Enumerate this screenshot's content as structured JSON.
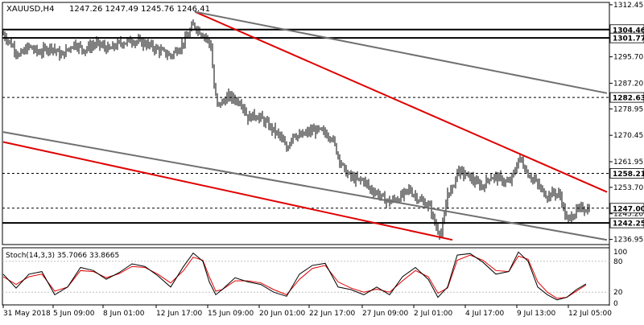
{
  "header": {
    "symbol_timeframe": "XAUUSD,H4",
    "ohlc": "1247.26 1247.49 1245.76 1246.41"
  },
  "stoch": {
    "label": "Stoch(14,3,3) 35.7066 33.8665",
    "level_high": "80",
    "level_low": "20",
    "axis_top": "100",
    "axis_bottom": "0",
    "colors": {
      "main": "#000000",
      "signal": "#e00000",
      "levels": "#c0c0c0"
    }
  },
  "colors": {
    "background": "#ffffff",
    "candle": "#000000",
    "red_channel": "#e00000",
    "grey_channel": "#707070",
    "hline": "#000000"
  },
  "chart_data": {
    "type": "candlestick",
    "symbol": "XAUUSD",
    "timeframe": "H4",
    "price_ticks": [
      "1312.45",
      "1304.46",
      "1301.77",
      "1295.70",
      "1287.20",
      "1282.63",
      "1278.95",
      "1270.45",
      "1261.95",
      "1258.21",
      "1253.70",
      "1247.00",
      "1245.20",
      "1242.25",
      "1236.95"
    ],
    "y_axis_ticks": [
      1312.45,
      1295.7,
      1287.2,
      1278.95,
      1270.45,
      1261.95,
      1253.7,
      1245.2,
      1236.95
    ],
    "ylim": [
      1235.3,
      1313.2
    ],
    "time_labels": [
      "31 May 2018",
      "5 Jun 09:00",
      "8 Jun 01:00",
      "12 Jun 17:00",
      "15 Jun 09:00",
      "20 Jun 01:00",
      "22 Jun 17:00",
      "27 Jun 09:00",
      "2 Jul 01:00",
      "4 Jul 17:00",
      "9 Jul 13:00",
      "12 Jul 05:00"
    ],
    "horizontal_levels": [
      {
        "price": 1304.46,
        "label": "1304.46",
        "style": "solid"
      },
      {
        "price": 1301.77,
        "label": "1301.77",
        "style": "solid"
      },
      {
        "price": 1282.63,
        "label": "1282.63",
        "style": "dashed"
      },
      {
        "price": 1258.21,
        "label": "1258.21",
        "style": "dashed"
      },
      {
        "price": 1247.0,
        "label": "1247.00",
        "style": "dashed"
      },
      {
        "price": 1242.25,
        "label": "1242.25",
        "style": "solid"
      }
    ],
    "trendlines": [
      {
        "color": "red",
        "from": {
          "bar": 119,
          "price": 1310.2
        },
        "to": {
          "bar": 375,
          "price": 1252.2
        }
      },
      {
        "color": "red",
        "from": {
          "bar": 0,
          "price": 1268.3
        },
        "to": {
          "bar": 279,
          "price": 1236.8
        }
      },
      {
        "color": "grey",
        "from": {
          "bar": 119,
          "price": 1310.2
        },
        "to": {
          "bar": 375,
          "price": 1284.0
        }
      },
      {
        "color": "grey",
        "from": {
          "bar": 0,
          "price": 1271.5
        },
        "to": {
          "bar": 375,
          "price": 1236.8
        }
      }
    ],
    "path_anchors": [
      [
        0,
        1303
      ],
      [
        6,
        1299
      ],
      [
        10,
        1296
      ],
      [
        16,
        1299
      ],
      [
        22,
        1297
      ],
      [
        30,
        1299
      ],
      [
        36,
        1296
      ],
      [
        44,
        1300
      ],
      [
        50,
        1298
      ],
      [
        58,
        1300
      ],
      [
        66,
        1298
      ],
      [
        72,
        1300
      ],
      [
        80,
        1301
      ],
      [
        88,
        1300
      ],
      [
        96,
        1298
      ],
      [
        104,
        1296
      ],
      [
        110,
        1299
      ],
      [
        114,
        1302
      ],
      [
        118,
        1306
      ],
      [
        122,
        1304
      ],
      [
        126,
        1302
      ],
      [
        129,
        1299
      ],
      [
        131,
        1286
      ],
      [
        133,
        1280
      ],
      [
        136,
        1281
      ],
      [
        140,
        1283
      ],
      [
        144,
        1282
      ],
      [
        148,
        1281
      ],
      [
        152,
        1276
      ],
      [
        156,
        1277
      ],
      [
        160,
        1276
      ],
      [
        164,
        1274
      ],
      [
        168,
        1272
      ],
      [
        172,
        1270
      ],
      [
        176,
        1266
      ],
      [
        180,
        1271
      ],
      [
        184,
        1270
      ],
      [
        188,
        1271
      ],
      [
        192,
        1272
      ],
      [
        196,
        1272
      ],
      [
        200,
        1271
      ],
      [
        204,
        1270
      ],
      [
        208,
        1264
      ],
      [
        212,
        1259
      ],
      [
        216,
        1257
      ],
      [
        220,
        1256
      ],
      [
        224,
        1256
      ],
      [
        228,
        1253
      ],
      [
        232,
        1252
      ],
      [
        236,
        1250
      ],
      [
        240,
        1249
      ],
      [
        244,
        1250
      ],
      [
        248,
        1251
      ],
      [
        252,
        1253
      ],
      [
        256,
        1251
      ],
      [
        260,
        1249
      ],
      [
        264,
        1248
      ],
      [
        266,
        1246
      ],
      [
        268,
        1242
      ],
      [
        270,
        1240
      ],
      [
        272,
        1239
      ],
      [
        274,
        1244
      ],
      [
        276,
        1252
      ],
      [
        279,
        1253
      ],
      [
        282,
        1259
      ],
      [
        286,
        1258
      ],
      [
        290,
        1257
      ],
      [
        294,
        1255
      ],
      [
        298,
        1254
      ],
      [
        302,
        1257
      ],
      [
        306,
        1257
      ],
      [
        310,
        1256
      ],
      [
        314,
        1255
      ],
      [
        318,
        1259
      ],
      [
        320,
        1263
      ],
      [
        322,
        1262
      ],
      [
        326,
        1258
      ],
      [
        330,
        1256
      ],
      [
        334,
        1253
      ],
      [
        338,
        1251
      ],
      [
        342,
        1252
      ],
      [
        346,
        1251
      ],
      [
        348,
        1247
      ],
      [
        350,
        1243
      ],
      [
        352,
        1244
      ],
      [
        356,
        1246
      ],
      [
        360,
        1247
      ],
      [
        364,
        1246.41
      ]
    ],
    "stochastic": {
      "k": [
        [
          0,
          55
        ],
        [
          8,
          28
        ],
        [
          16,
          55
        ],
        [
          24,
          60
        ],
        [
          32,
          15
        ],
        [
          40,
          30
        ],
        [
          48,
          68
        ],
        [
          56,
          62
        ],
        [
          64,
          45
        ],
        [
          72,
          58
        ],
        [
          80,
          75
        ],
        [
          88,
          70
        ],
        [
          96,
          52
        ],
        [
          104,
          30
        ],
        [
          112,
          70
        ],
        [
          118,
          96
        ],
        [
          124,
          80
        ],
        [
          128,
          40
        ],
        [
          132,
          15
        ],
        [
          136,
          25
        ],
        [
          144,
          48
        ],
        [
          152,
          40
        ],
        [
          160,
          35
        ],
        [
          168,
          20
        ],
        [
          176,
          12
        ],
        [
          184,
          55
        ],
        [
          192,
          72
        ],
        [
          200,
          76
        ],
        [
          208,
          30
        ],
        [
          216,
          25
        ],
        [
          224,
          15
        ],
        [
          232,
          30
        ],
        [
          240,
          15
        ],
        [
          248,
          50
        ],
        [
          256,
          68
        ],
        [
          264,
          45
        ],
        [
          270,
          10
        ],
        [
          276,
          30
        ],
        [
          282,
          92
        ],
        [
          290,
          95
        ],
        [
          298,
          78
        ],
        [
          306,
          55
        ],
        [
          314,
          60
        ],
        [
          320,
          98
        ],
        [
          326,
          80
        ],
        [
          332,
          30
        ],
        [
          338,
          15
        ],
        [
          344,
          5
        ],
        [
          350,
          10
        ],
        [
          356,
          25
        ],
        [
          362,
          36
        ]
      ],
      "d": [
        [
          0,
          50
        ],
        [
          8,
          35
        ],
        [
          16,
          50
        ],
        [
          24,
          55
        ],
        [
          32,
          22
        ],
        [
          40,
          30
        ],
        [
          48,
          62
        ],
        [
          56,
          60
        ],
        [
          64,
          48
        ],
        [
          72,
          56
        ],
        [
          80,
          70
        ],
        [
          88,
          68
        ],
        [
          96,
          55
        ],
        [
          104,
          38
        ],
        [
          112,
          62
        ],
        [
          118,
          88
        ],
        [
          124,
          82
        ],
        [
          128,
          50
        ],
        [
          132,
          22
        ],
        [
          136,
          25
        ],
        [
          144,
          42
        ],
        [
          152,
          42
        ],
        [
          160,
          38
        ],
        [
          168,
          25
        ],
        [
          176,
          15
        ],
        [
          184,
          45
        ],
        [
          192,
          66
        ],
        [
          200,
          72
        ],
        [
          208,
          40
        ],
        [
          216,
          28
        ],
        [
          224,
          20
        ],
        [
          232,
          26
        ],
        [
          240,
          20
        ],
        [
          248,
          42
        ],
        [
          256,
          62
        ],
        [
          264,
          50
        ],
        [
          270,
          18
        ],
        [
          276,
          28
        ],
        [
          282,
          82
        ],
        [
          290,
          92
        ],
        [
          298,
          82
        ],
        [
          306,
          62
        ],
        [
          314,
          60
        ],
        [
          320,
          90
        ],
        [
          326,
          84
        ],
        [
          332,
          40
        ],
        [
          338,
          20
        ],
        [
          344,
          8
        ],
        [
          350,
          10
        ],
        [
          356,
          22
        ],
        [
          362,
          34
        ]
      ]
    }
  }
}
